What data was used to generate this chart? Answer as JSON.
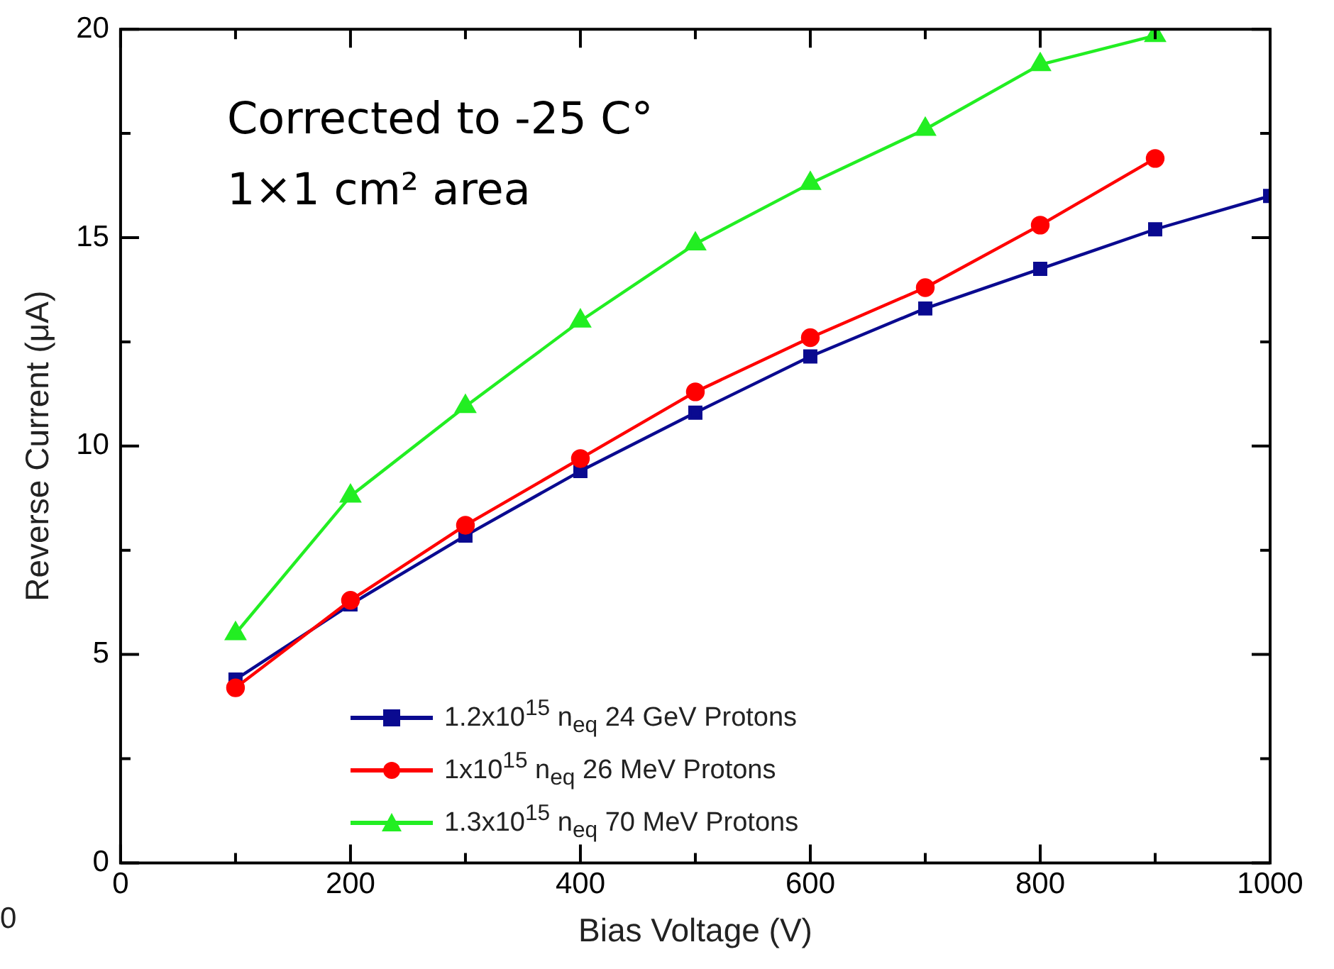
{
  "chart_data": {
    "type": "line",
    "xlabel": "Bias Voltage (V)",
    "ylabel": "Reverse Current (μA)",
    "xlim": [
      0,
      1000
    ],
    "xticks": [
      0,
      {
        "value": 100,
        "label": null
      },
      200,
      {
        "value": 300,
        "label": null
      },
      400,
      {
        "value": 500,
        "label": null
      },
      600,
      {
        "value": 700,
        "label": null
      },
      800,
      {
        "value": 900,
        "label": null
      },
      1000
    ],
    "ylim": [
      0,
      20
    ],
    "yticks": [
      0,
      {
        "value": 2.5,
        "label": null
      },
      5,
      {
        "value": 7.5,
        "label": null
      },
      10,
      {
        "value": 12.5,
        "label": null
      },
      15,
      {
        "value": 17.5,
        "label": null
      },
      20
    ],
    "x": [
      100,
      200,
      300,
      400,
      500,
      600,
      700,
      800,
      900,
      1000
    ],
    "series": [
      {
        "name": "1.2x10$^{15}$ n$_{eq}$ 24 GeV Protons",
        "color": "#0a0a90",
        "marker": "square",
        "values": [
          4.4,
          6.2,
          7.85,
          9.4,
          10.8,
          12.15,
          13.3,
          14.25,
          15.2,
          16.0
        ]
      },
      {
        "name": "1x10$^{15}$ n$_{eq}$ 26 MeV Protons",
        "color": "#ff0000",
        "marker": "circle",
        "values": [
          4.2,
          6.3,
          8.1,
          9.7,
          11.3,
          12.6,
          13.8,
          15.3,
          16.9,
          null
        ]
      },
      {
        "name": "1.3x10$^{15}$ n$_{eq}$ 70 MeV Protons",
        "color": "#22ee22",
        "marker": "triangle",
        "values": [
          5.5,
          8.8,
          10.95,
          13.0,
          14.85,
          16.3,
          17.6,
          19.15,
          19.85,
          null
        ]
      }
    ],
    "legend": "bottom",
    "grid": false,
    "line_style": "solid",
    "annotations": [
      "Corrected to -25 C°",
      "1×1 cm² area",
      "0"
    ]
  }
}
